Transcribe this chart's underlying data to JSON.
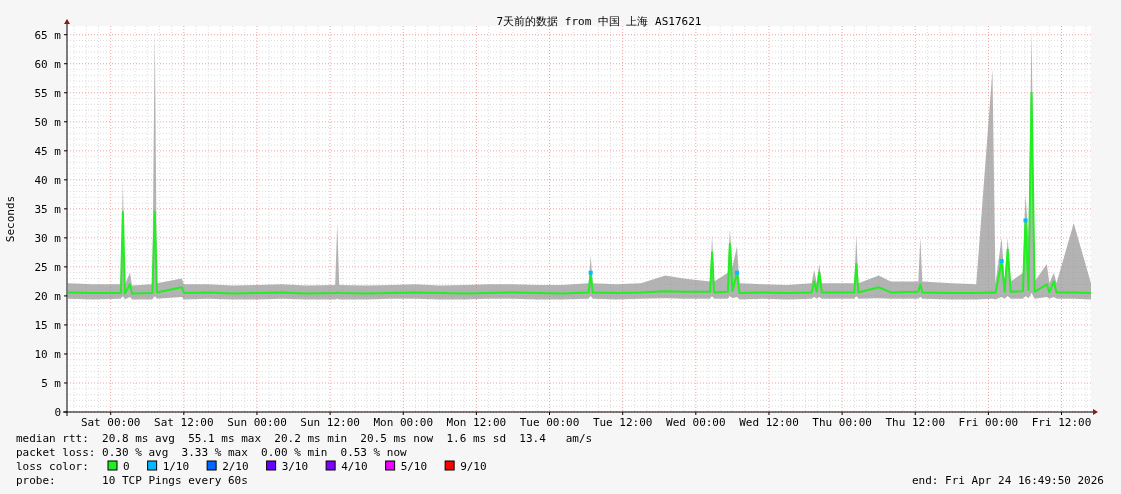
{
  "chart_data": {
    "type": "line",
    "title": "7天前的数据 from 中国 上海 AS17621",
    "ylabel": "Seconds",
    "legend_title": "loss color:",
    "legend": "bottom",
    "grid": true,
    "xlim": [
      "2026-04-17T16:50",
      "2026-04-24T16:50"
    ],
    "xticks": [
      {
        "value": "2026-04-18T00:00",
        "label": "Sat 00:00"
      },
      {
        "value": "2026-04-18T12:00",
        "label": "Sat 12:00"
      },
      {
        "value": "2026-04-19T00:00",
        "label": "Sun 00:00"
      },
      {
        "value": "2026-04-19T12:00",
        "label": "Sun 12:00"
      },
      {
        "value": "2026-04-20T00:00",
        "label": "Mon 00:00"
      },
      {
        "value": "2026-04-20T12:00",
        "label": "Mon 12:00"
      },
      {
        "value": "2026-04-21T00:00",
        "label": "Tue 00:00"
      },
      {
        "value": "2026-04-21T12:00",
        "label": "Tue 12:00"
      },
      {
        "value": "2026-04-22T00:00",
        "label": "Wed 00:00"
      },
      {
        "value": "2026-04-22T12:00",
        "label": "Wed 12:00"
      },
      {
        "value": "2026-04-23T00:00",
        "label": "Thu 00:00"
      },
      {
        "value": "2026-04-23T12:00",
        "label": "Thu 12:00"
      },
      {
        "value": "2026-04-24T00:00",
        "label": "Fri 00:00"
      },
      {
        "value": "2026-04-24T12:00",
        "label": "Fri 12:00"
      }
    ],
    "ylim": [
      0,
      66.5
    ],
    "yticks": [
      0,
      {
        "value": 5,
        "label": "5 m"
      },
      {
        "value": 10,
        "label": "10 m"
      },
      {
        "value": 15,
        "label": "15 m"
      },
      {
        "value": 20,
        "label": "20 m"
      },
      {
        "value": 25,
        "label": "25 m"
      },
      {
        "value": 30,
        "label": "30 m"
      },
      {
        "value": 35,
        "label": "35 m"
      },
      {
        "value": 40,
        "label": "40 m"
      },
      {
        "value": 45,
        "label": "45 m"
      },
      {
        "value": 50,
        "label": "50 m"
      },
      {
        "value": 55,
        "label": "55 m"
      },
      {
        "value": 60,
        "label": "60 m"
      },
      {
        "value": 65,
        "label": "65 m"
      }
    ],
    "x": [
      "2026-04-17T17:00",
      "2026-04-17T21:00",
      "2026-04-18T01:40",
      "2026-04-18T02:00",
      "2026-04-18T02:20",
      "2026-04-18T03:10",
      "2026-04-18T03:30",
      "2026-04-18T06:50",
      "2026-04-18T07:14",
      "2026-04-18T07:35",
      "2026-04-18T11:40",
      "2026-04-18T12:00",
      "2026-04-18T16:00",
      "2026-04-18T20:00",
      "2026-04-19T00:00",
      "2026-04-19T04:00",
      "2026-04-19T08:00",
      "2026-04-19T12:50",
      "2026-04-19T13:10",
      "2026-04-19T13:30",
      "2026-04-19T18:00",
      "2026-04-19T22:00",
      "2026-04-20T02:00",
      "2026-04-20T06:00",
      "2026-04-20T10:00",
      "2026-04-20T14:00",
      "2026-04-20T18:00",
      "2026-04-20T22:00",
      "2026-04-21T02:00",
      "2026-04-21T06:25",
      "2026-04-21T06:45",
      "2026-04-21T07:05",
      "2026-04-21T11:00",
      "2026-04-21T15:00",
      "2026-04-21T19:00",
      "2026-04-21T22:00",
      "2026-04-22T02:20",
      "2026-04-22T02:40",
      "2026-04-22T03:00",
      "2026-04-22T05:15",
      "2026-04-22T05:35",
      "2026-04-22T06:00",
      "2026-04-22T06:45",
      "2026-04-22T07:10",
      "2026-04-22T11:00",
      "2026-04-22T15:00",
      "2026-04-22T19:00",
      "2026-04-22T19:25",
      "2026-04-22T19:50",
      "2026-04-22T20:15",
      "2026-04-22T20:40",
      "2026-04-23T02:00",
      "2026-04-23T02:20",
      "2026-04-23T02:40",
      "2026-04-23T06:00",
      "2026-04-23T08:00",
      "2026-04-23T12:30",
      "2026-04-23T12:50",
      "2026-04-23T13:10",
      "2026-04-23T18:00",
      "2026-04-23T22:00",
      "2026-04-24T00:40",
      "2026-04-24T01:10",
      "2026-04-24T02:10",
      "2026-04-24T02:40",
      "2026-04-24T03:10",
      "2026-04-24T03:40",
      "2026-04-24T05:40",
      "2026-04-24T06:05",
      "2026-04-24T06:35",
      "2026-04-24T07:05",
      "2026-04-24T07:35",
      "2026-04-24T09:35",
      "2026-04-24T10:00",
      "2026-04-24T10:45",
      "2026-04-24T11:10",
      "2026-04-24T14:00",
      "2026-04-24T16:50"
    ],
    "series": [
      {
        "name": "0",
        "color": "#22ee22",
        "values": [
          20.6,
          20.5,
          20.5,
          34.5,
          20.4,
          22,
          20.4,
          20.5,
          34.5,
          20.6,
          21.5,
          20.5,
          20.6,
          20.4,
          20.5,
          20.6,
          20.4,
          20.5,
          20.6,
          20.5,
          20.4,
          20.5,
          20.6,
          20.5,
          20.4,
          20.5,
          20.6,
          20.5,
          20.4,
          20.6,
          24,
          20.6,
          20.5,
          20.6,
          20.8,
          20.7,
          20.7,
          27.5,
          20.6,
          20.7,
          29,
          20.8,
          24,
          20.5,
          20.6,
          20.5,
          20.6,
          22.5,
          20.7,
          24,
          20.6,
          20.6,
          25.5,
          20.6,
          21.5,
          20.6,
          20.7,
          22,
          20.6,
          20.5,
          20.5,
          20.6,
          20.5,
          26,
          20.7,
          28,
          20.7,
          20.8,
          33,
          21,
          55,
          20.7,
          22,
          20.6,
          22.5,
          20.6,
          20.6,
          20.5
        ],
        "lower": [
          19.5,
          19.4,
          19.5,
          20,
          19.4,
          19.8,
          19.4,
          19.4,
          20,
          19.5,
          19.8,
          19.4,
          19.5,
          19.4,
          19.4,
          19.5,
          19.4,
          19.4,
          19.5,
          19.4,
          19.4,
          19.5,
          19.5,
          19.4,
          19.4,
          19.5,
          19.5,
          19.4,
          19.4,
          19.5,
          20,
          19.5,
          19.4,
          19.5,
          19.6,
          19.5,
          19.5,
          20,
          19.5,
          19.5,
          20,
          19.6,
          19.8,
          19.4,
          19.5,
          19.4,
          19.5,
          19.8,
          19.5,
          19.8,
          19.5,
          19.5,
          20,
          19.5,
          19.6,
          19.5,
          19.5,
          19.8,
          19.5,
          19.4,
          19.4,
          19.5,
          19.4,
          19.8,
          19.5,
          20,
          19.5,
          19.5,
          20,
          19.6,
          20.5,
          19.5,
          19.8,
          19.5,
          19.8,
          19.5,
          19.5,
          19.4
        ],
        "upper": [
          22.2,
          22,
          22,
          39.5,
          22,
          24,
          21.8,
          22,
          66,
          22.2,
          23,
          22,
          22,
          21.8,
          21.9,
          22,
          21.8,
          21.9,
          32.5,
          21.9,
          21.8,
          21.9,
          22,
          21.8,
          21.9,
          22,
          22,
          21.9,
          21.9,
          22.2,
          27,
          22.2,
          22,
          22.2,
          23.5,
          23,
          22.5,
          30.5,
          22.5,
          24,
          31.5,
          25,
          28.5,
          22.2,
          22,
          21.9,
          22.2,
          24.5,
          22.2,
          25.5,
          22.2,
          22.2,
          30.5,
          22.2,
          23.5,
          22.5,
          22.5,
          30,
          22.5,
          22.2,
          22,
          59,
          22.2,
          30,
          22.5,
          30,
          22.5,
          24,
          37.5,
          30,
          66,
          22.5,
          25.5,
          22.2,
          24,
          22.2,
          32.5,
          22.2
        ]
      },
      {
        "name": "1/10",
        "color": "#00bbff",
        "type": "scatter",
        "marker": "square",
        "values": [
          null,
          null,
          null,
          null,
          null,
          null,
          null,
          null,
          null,
          null,
          null,
          null,
          null,
          null,
          null,
          null,
          null,
          null,
          null,
          null,
          null,
          null,
          null,
          null,
          null,
          null,
          null,
          null,
          null,
          null,
          24,
          null,
          null,
          null,
          null,
          null,
          null,
          null,
          null,
          null,
          null,
          null,
          24,
          null,
          null,
          null,
          null,
          null,
          null,
          null,
          null,
          null,
          null,
          null,
          null,
          null,
          null,
          null,
          null,
          null,
          null,
          null,
          null,
          26,
          null,
          null,
          null,
          null,
          33,
          null,
          null,
          null,
          null,
          null,
          null,
          null,
          null,
          null
        ]
      },
      {
        "name": "2/10",
        "color": "#0066ff",
        "type": "scatter",
        "marker": "square",
        "values": [
          null,
          null,
          null,
          null,
          null,
          null,
          null,
          null,
          null,
          null,
          null,
          null,
          null,
          null,
          null,
          null,
          null,
          null,
          null,
          null,
          null,
          null,
          null,
          null,
          null,
          null,
          null,
          null,
          null,
          null,
          null,
          null,
          null,
          null,
          null,
          null,
          null,
          null,
          null,
          null,
          null,
          null,
          null,
          null,
          null,
          null,
          null,
          null,
          null,
          null,
          null,
          null,
          null,
          null,
          null,
          null,
          null,
          null,
          null,
          null,
          null,
          null,
          null,
          null,
          null,
          null,
          null,
          null,
          null,
          null,
          null,
          null,
          null,
          null,
          null,
          null,
          null,
          null
        ]
      },
      {
        "name": "3/10",
        "color": "#6a00ff",
        "type": "scatter",
        "marker": "square",
        "values": [
          null,
          null,
          null,
          null,
          null,
          null,
          null,
          null,
          null,
          null,
          null,
          null,
          null,
          null,
          null,
          null,
          null,
          null,
          null,
          null,
          null,
          null,
          null,
          null,
          null,
          null,
          null,
          null,
          null,
          null,
          null,
          null,
          null,
          null,
          null,
          null,
          null,
          null,
          null,
          null,
          null,
          null,
          null,
          null,
          null,
          null,
          null,
          null,
          null,
          null,
          null,
          null,
          null,
          null,
          null,
          null,
          null,
          null,
          null,
          null,
          null,
          null,
          null,
          null,
          null,
          null,
          null,
          null,
          null,
          null,
          null,
          null,
          null,
          null,
          null,
          null,
          null,
          null
        ]
      },
      {
        "name": "4/10",
        "color": "#7f00ff",
        "type": "scatter",
        "marker": "square",
        "values": [
          null,
          null,
          null,
          null,
          null,
          null,
          null,
          null,
          null,
          null,
          null,
          null,
          null,
          null,
          null,
          null,
          null,
          null,
          null,
          null,
          null,
          null,
          null,
          null,
          null,
          null,
          null,
          null,
          null,
          null,
          null,
          null,
          null,
          null,
          null,
          null,
          null,
          null,
          null,
          null,
          null,
          null,
          null,
          null,
          null,
          null,
          null,
          null,
          null,
          null,
          null,
          null,
          null,
          null,
          null,
          null,
          null,
          null,
          null,
          null,
          null,
          null,
          null,
          null,
          null,
          null,
          null,
          null,
          null,
          null,
          null,
          null,
          null,
          null,
          null,
          null,
          null,
          null
        ]
      },
      {
        "name": "5/10",
        "color": "#ee00ff",
        "type": "scatter",
        "marker": "square",
        "values": [
          null,
          null,
          null,
          null,
          null,
          null,
          null,
          null,
          null,
          null,
          null,
          null,
          null,
          null,
          null,
          null,
          null,
          null,
          null,
          null,
          null,
          null,
          null,
          null,
          null,
          null,
          null,
          null,
          null,
          null,
          null,
          null,
          null,
          null,
          null,
          null,
          null,
          null,
          null,
          null,
          null,
          null,
          null,
          null,
          null,
          null,
          null,
          null,
          null,
          null,
          null,
          null,
          null,
          null,
          null,
          null,
          null,
          null,
          null,
          null,
          null,
          null,
          null,
          null,
          null,
          null,
          null,
          null,
          null,
          null,
          null,
          null,
          null,
          null,
          null,
          null,
          null,
          null
        ]
      },
      {
        "name": "9/10",
        "color": "#ff0000",
        "type": "scatter",
        "marker": "square",
        "values": [
          null,
          null,
          null,
          null,
          null,
          null,
          null,
          null,
          null,
          null,
          null,
          null,
          null,
          null,
          null,
          null,
          null,
          null,
          null,
          null,
          null,
          null,
          null,
          null,
          null,
          null,
          null,
          null,
          null,
          null,
          null,
          null,
          null,
          null,
          null,
          null,
          null,
          null,
          null,
          null,
          null,
          null,
          null,
          null,
          null,
          null,
          null,
          null,
          null,
          null,
          null,
          null,
          null,
          null,
          null,
          null,
          null,
          null,
          null,
          null,
          null,
          null,
          null,
          null,
          null,
          null,
          null,
          null,
          null,
          null,
          null,
          null,
          null,
          null,
          null,
          null,
          null,
          null
        ]
      }
    ],
    "annotations": [
      "median rtt:  20.8 ms avg  55.1 ms max  20.2 ms min  20.5 ms now  1.6 ms sd  13.4   am/s",
      "packet loss: 0.30 % avg  3.33 % max  0.00 % min  0.53 % now",
      "probe:       10 TCP Pings every 60s",
      "end: Fri Apr 24 16:49:50 2026"
    ]
  }
}
